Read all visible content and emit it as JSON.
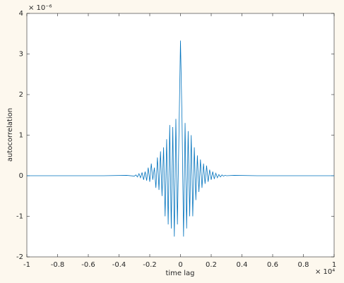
{
  "chart_data": {
    "type": "line",
    "xlabel": "time lag",
    "ylabel": "autocorrelation",
    "x_multiplier": "× 10⁴",
    "y_multiplier": "× 10⁻⁶",
    "x": [
      -1,
      -0.5,
      -0.35,
      -0.3,
      -0.29,
      -0.28,
      -0.27,
      -0.26,
      -0.25,
      -0.24,
      -0.23,
      -0.22,
      -0.21,
      -0.2,
      -0.19,
      -0.18,
      -0.17,
      -0.16,
      -0.15,
      -0.14,
      -0.13,
      -0.12,
      -0.11,
      -0.1,
      -0.09,
      -0.08,
      -0.07,
      -0.06,
      -0.05,
      -0.04,
      -0.03,
      -0.02,
      -0.01,
      0,
      0.01,
      0.02,
      0.03,
      0.04,
      0.05,
      0.06,
      0.07,
      0.08,
      0.09,
      0.1,
      0.11,
      0.12,
      0.13,
      0.14,
      0.15,
      0.16,
      0.17,
      0.18,
      0.19,
      0.2,
      0.21,
      0.22,
      0.23,
      0.24,
      0.25,
      0.26,
      0.27,
      0.28,
      0.29,
      0.3,
      0.35,
      0.5,
      1
    ],
    "series": [
      {
        "color": "#0072bd",
        "values": [
          0,
          0,
          0.01,
          -0.01,
          0.02,
          -0.03,
          0.05,
          -0.05,
          0.08,
          -0.1,
          0.1,
          -0.12,
          0.2,
          -0.15,
          0.3,
          -0.1,
          0.2,
          -0.3,
          0.45,
          -0.35,
          0.6,
          -0.5,
          0.7,
          -1.0,
          0.9,
          -1.2,
          1.25,
          -1.3,
          1.2,
          -1.5,
          1.4,
          -1.2,
          1.0,
          3.33,
          1.4,
          -1.5,
          1.3,
          -1.3,
          1.1,
          -1.0,
          1.0,
          -1.0,
          0.7,
          -0.6,
          0.5,
          -0.4,
          0.4,
          -0.3,
          0.3,
          -0.2,
          0.25,
          -0.15,
          0.15,
          -0.1,
          0.1,
          -0.08,
          0.06,
          -0.05,
          0.03,
          -0.03,
          0.02,
          -0.01,
          0.01,
          0,
          0.01,
          0,
          0
        ]
      }
    ],
    "xlim": [
      -1,
      1
    ],
    "xticks": [
      -1,
      -0.8,
      -0.6,
      -0.4,
      -0.2,
      0,
      0.2,
      0.4,
      0.6,
      0.8,
      1
    ],
    "ylim": [
      -2,
      4
    ],
    "yticks": [
      -2,
      -1,
      0,
      1,
      2,
      3,
      4
    ]
  }
}
